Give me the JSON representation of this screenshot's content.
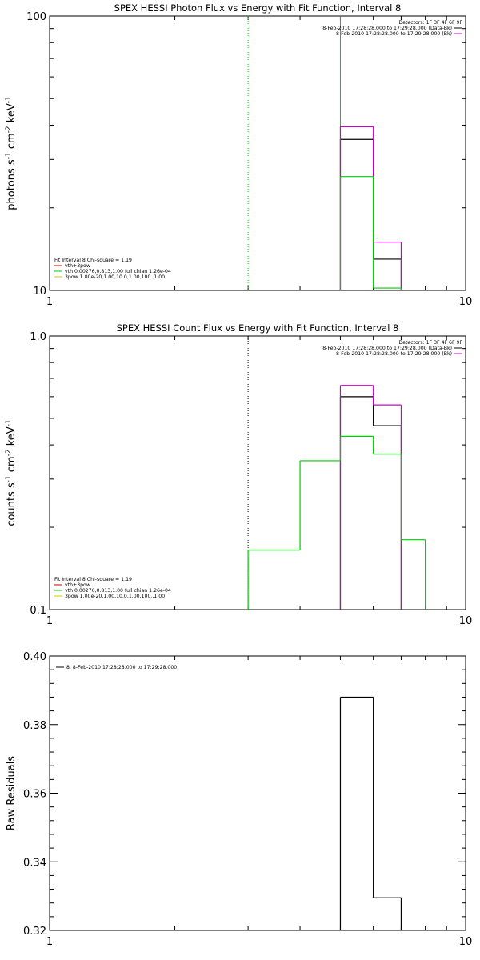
{
  "chart_data": [
    {
      "type": "step",
      "title": "SPEX HESSI Photon Flux vs Energy with Fit Function, Interval 8",
      "ylabel_base": "photons s",
      "ylabel_exp1": "-1",
      "ylabel_mid1": " cm",
      "ylabel_exp2": "-2",
      "ylabel_mid2": " keV",
      "ylabel_exp3": "-1",
      "xlabel": "",
      "xscale": "log",
      "yscale": "log",
      "xlim": [
        1,
        10
      ],
      "ylim": [
        10,
        100
      ],
      "xtick_labels": [
        {
          "value": 1,
          "label": "1"
        },
        {
          "value": 10,
          "label": "10"
        }
      ],
      "ytick_labels": [
        {
          "value": 10,
          "label": "10"
        },
        {
          "value": 100,
          "label": "100"
        }
      ],
      "vlines": [
        {
          "x": 3.0,
          "color": "#00cc00",
          "style": "dotted"
        },
        {
          "x": 5.0,
          "color": "#00cc00",
          "style": "solid"
        }
      ],
      "series": [
        {
          "color": "#000000",
          "bins": [
            [
              5.0,
              6.0,
              35.5
            ],
            [
              6.0,
              7.0,
              13.0
            ]
          ]
        },
        {
          "color": "#cc00cc",
          "bins": [
            [
              5.0,
              6.0,
              39.5
            ],
            [
              6.0,
              7.0,
              15.0
            ]
          ]
        },
        {
          "color": "#00cc00",
          "bins": [
            [
              5.0,
              6.0,
              26.0
            ],
            [
              6.0,
              7.0,
              10.2
            ]
          ]
        }
      ],
      "legend_top": {
        "header": "Detectors: 1F 3F 4F 6F 9F",
        "entries": [
          {
            "text": "8-Feb-2010 17:28:28.000 to 17:29:28.000 (Data-Bk)",
            "color": "#000000"
          },
          {
            "text": "8-Feb-2010 17:28:28.000 to 17:29:28.000 (Bk)",
            "color": "#cc00cc"
          }
        ]
      },
      "legend_bottom": {
        "header": "Fit Interval 8   Chi-square = 1.19",
        "entries": [
          {
            "text": "vth+3pow",
            "color": "#cc0000"
          },
          {
            "text": "vth 0.00276,0.813,1.00  full chian 1.26e-04",
            "color": "#00cc00"
          },
          {
            "text": "3pow 1.00e-20,1.00,10.0,1.00,100.,1.00",
            "color": "#cccc00"
          }
        ]
      }
    },
    {
      "type": "step",
      "title": "SPEX HESSI Count Flux vs Energy with Fit Function, Interval 8",
      "ylabel_base": "counts s",
      "ylabel_exp1": "-1",
      "ylabel_mid1": " cm",
      "ylabel_exp2": "-2",
      "ylabel_mid2": " keV",
      "ylabel_exp3": "-1",
      "xlabel": "",
      "xscale": "log",
      "yscale": "log",
      "xlim": [
        1,
        10
      ],
      "ylim": [
        0.1,
        1.0
      ],
      "xtick_labels": [
        {
          "value": 1,
          "label": "1"
        },
        {
          "value": 10,
          "label": "10"
        }
      ],
      "ytick_labels": [
        {
          "value": 0.1,
          "label": "0.1"
        },
        {
          "value": 1.0,
          "label": "1.0"
        }
      ],
      "vlines": [
        {
          "x": 3.0,
          "color": "#000000",
          "style": "dotted"
        }
      ],
      "series": [
        {
          "color": "#000000",
          "bins": [
            [
              5.0,
              6.0,
              0.6
            ],
            [
              6.0,
              7.0,
              0.47
            ]
          ]
        },
        {
          "color": "#cc00cc",
          "bins": [
            [
              5.0,
              6.0,
              0.66
            ],
            [
              6.0,
              7.0,
              0.56
            ]
          ]
        },
        {
          "color": "#00cc00",
          "bins": [
            [
              3.0,
              4.0,
              0.165
            ],
            [
              4.0,
              5.0,
              0.35
            ],
            [
              5.0,
              6.0,
              0.43
            ],
            [
              6.0,
              7.0,
              0.37
            ],
            [
              7.0,
              8.0,
              0.18
            ]
          ]
        }
      ],
      "legend_top": {
        "header": "Detectors: 1F 3F 4F 6F 9F",
        "entries": [
          {
            "text": "8-Feb-2010 17:28:28.000 to 17:29:28.000 (Data-Bk)",
            "color": "#000000"
          },
          {
            "text": "8-Feb-2010 17:28:28.000 to 17:29:28.000 (Bk)",
            "color": "#cc00cc"
          }
        ]
      },
      "legend_bottom": {
        "header": "Fit Interval 8   Chi-square = 1.19",
        "entries": [
          {
            "text": "vth+3pow",
            "color": "#cc0000"
          },
          {
            "text": "vth 0.00276,0.813,1.00  full chian 1.26e-04",
            "color": "#00cc00"
          },
          {
            "text": "3pow 1.00e-20,1.00,10.0,1.00,100.,1.00",
            "color": "#cccc00"
          }
        ]
      }
    },
    {
      "type": "step",
      "title": "",
      "ylabel_base": "Raw Residuals",
      "xlabel": "",
      "xscale": "log",
      "yscale": "linear",
      "xlim": [
        1,
        10
      ],
      "ylim": [
        0.32,
        0.4
      ],
      "xtick_labels": [
        {
          "value": 1,
          "label": "1"
        },
        {
          "value": 10,
          "label": "10"
        }
      ],
      "ytick_labels": [
        {
          "value": 0.32,
          "label": "0.32"
        },
        {
          "value": 0.34,
          "label": "0.34"
        },
        {
          "value": 0.36,
          "label": "0.36"
        },
        {
          "value": 0.38,
          "label": "0.38"
        },
        {
          "value": 0.4,
          "label": "0.40"
        }
      ],
      "vlines": [],
      "series": [
        {
          "color": "#000000",
          "bins": [
            [
              5.0,
              6.0,
              0.388
            ],
            [
              6.0,
              7.0,
              0.3295
            ]
          ]
        }
      ],
      "legend_top_left": {
        "entries": [
          {
            "text": "8.  8-Feb-2010 17:28:28.000 to 17:29:28.000",
            "color": "#000000"
          }
        ]
      }
    }
  ]
}
